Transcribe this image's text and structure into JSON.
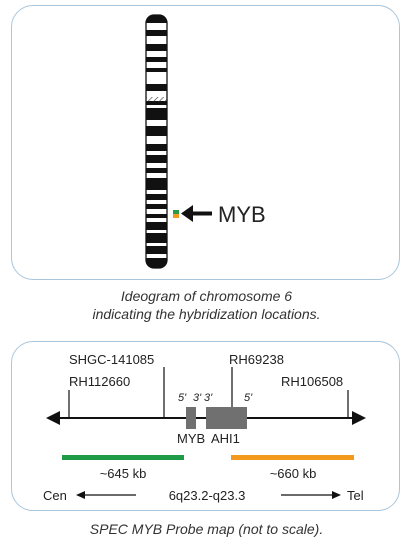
{
  "ideogram": {
    "gene_label": "MYB",
    "caption_line1": "Ideogram of chromosome 6",
    "caption_line2": "indicating the hybridization locations.",
    "marker_colors": [
      "#2a9a4a",
      "#f39a1e"
    ]
  },
  "probe_map": {
    "markers": {
      "shgc": "SHGC-141085",
      "rh112660": "RH112660",
      "rh69238": "RH69238",
      "rh106508": "RH106508"
    },
    "gene_ends": {
      "myb_5": "5'",
      "myb_3": "3'",
      "ahi1_3": "3'",
      "ahi1_5": "5'"
    },
    "genes": {
      "myb": "MYB",
      "ahi1": "AHI1"
    },
    "probes": [
      {
        "size": "~645 kb",
        "color": "#1f9a46"
      },
      {
        "size": "~660 kb",
        "color": "#f39a1e"
      }
    ],
    "orientation": {
      "left": "Cen",
      "band": "6q23.2-q23.3",
      "right": "Tel"
    },
    "caption": "SPEC MYB Probe map (not to scale)."
  }
}
